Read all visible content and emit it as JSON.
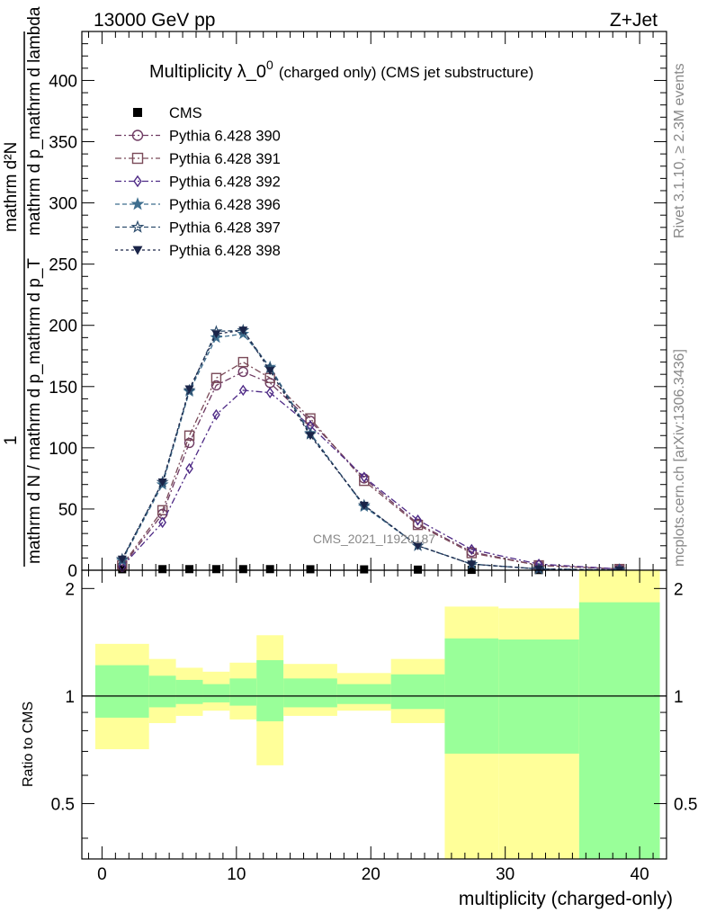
{
  "header": {
    "left": "13000 GeV pp",
    "right": "Z+Jet"
  },
  "side_text": {
    "rivet": "Rivet 3.1.10, ≥ 2.3M events",
    "mcplots": "mcplots.cern.ch [arXiv:1306.3436]"
  },
  "watermark": "CMS_2021_I1920187",
  "chart_data": [
    {
      "type": "line",
      "title": "Multiplicity λ_0^0 (charged only) (CMS jet substructure)",
      "title_main": "Multiplicity λ_0",
      "title_sup": "0",
      "title_rest": "(charged only) (CMS jet substructure)",
      "ylabel_parts": [
        "1",
        "mathrm d N / mathrm d p_mathrm d p_T",
        "mathrm d²N",
        "mathrm d p_mathrm d lambda"
      ],
      "xlabel": "",
      "xlim": [
        -1.5,
        42
      ],
      "ylim": [
        0,
        440
      ],
      "yticks": [
        0,
        50,
        100,
        150,
        200,
        250,
        300,
        350,
        400
      ],
      "x": [
        1.5,
        4.5,
        6.5,
        8.5,
        10.5,
        12.5,
        15.5,
        19.5,
        23.5,
        27.5,
        32.5,
        38.5
      ],
      "legend_position": "top-left",
      "series": [
        {
          "name": "CMS",
          "color": "#000000",
          "marker": "square",
          "values": [
            0.8,
            0.9,
            0.9,
            0.9,
            0.9,
            0.9,
            0.8,
            0.7,
            0.5,
            0.3,
            0.15,
            0.05
          ]
        },
        {
          "name": "Pythia 6.428 390",
          "color": "#6e3a62",
          "marker": "circle",
          "dash": "7,3,2,3",
          "values": [
            3,
            46,
            104,
            151,
            162,
            153,
            122,
            75,
            38,
            15,
            4,
            1
          ]
        },
        {
          "name": "Pythia 6.428 391",
          "color": "#7a4a58",
          "marker": "square-open",
          "dash": "7,3,2,3",
          "values": [
            4,
            49,
            110,
            157,
            170,
            157,
            124,
            73,
            37,
            14,
            4,
            1
          ]
        },
        {
          "name": "Pythia 6.428 392",
          "color": "#4e2a86",
          "marker": "diamond",
          "dash": "7,3,2,3",
          "values": [
            3,
            39,
            83,
            127,
            147,
            145,
            118,
            76,
            41,
            17,
            5,
            1
          ]
        },
        {
          "name": "Pythia 6.428 396",
          "color": "#3e6e8e",
          "marker": "star",
          "dash": "5,3",
          "values": [
            8,
            70,
            146,
            190,
            193,
            166,
            112,
            52,
            20,
            5,
            1,
            0.2
          ]
        },
        {
          "name": "Pythia 6.428 397",
          "color": "#2e4e6e",
          "marker": "star-open",
          "dash": "5,3",
          "values": [
            9,
            72,
            147,
            195,
            196,
            165,
            111,
            53,
            20,
            5,
            1,
            0.2
          ]
        },
        {
          "name": "Pythia 6.428 398",
          "color": "#1a2448",
          "marker": "triangle-down",
          "dash": "3,3",
          "values": [
            9,
            72,
            148,
            193,
            196,
            163,
            110,
            53,
            20,
            5,
            1,
            0.2
          ]
        }
      ]
    },
    {
      "type": "area",
      "title": "",
      "ylabel": "Ratio to CMS",
      "xlabel": "multiplicity (charged-only)",
      "xlim": [
        -1.5,
        42
      ],
      "ylim": [
        0.35,
        2.25
      ],
      "yticks": [
        0.5,
        1,
        2
      ],
      "xticks": [
        0,
        10,
        20,
        30,
        40
      ],
      "reference_line": 1,
      "bins": [
        {
          "lo": -0.5,
          "hi": 3.5,
          "green": [
            0.87,
            1.22
          ],
          "yellow": [
            0.71,
            1.4
          ]
        },
        {
          "lo": 3.5,
          "hi": 5.5,
          "green": [
            0.93,
            1.14
          ],
          "yellow": [
            0.84,
            1.27
          ]
        },
        {
          "lo": 5.5,
          "hi": 7.5,
          "green": [
            0.95,
            1.11
          ],
          "yellow": [
            0.88,
            1.2
          ]
        },
        {
          "lo": 7.5,
          "hi": 9.5,
          "green": [
            0.96,
            1.08
          ],
          "yellow": [
            0.91,
            1.17
          ]
        },
        {
          "lo": 9.5,
          "hi": 11.5,
          "green": [
            0.94,
            1.12
          ],
          "yellow": [
            0.86,
            1.24
          ]
        },
        {
          "lo": 11.5,
          "hi": 13.5,
          "green": [
            0.85,
            1.26
          ],
          "yellow": [
            0.64,
            1.48
          ]
        },
        {
          "lo": 13.5,
          "hi": 17.5,
          "green": [
            0.93,
            1.12
          ],
          "yellow": [
            0.88,
            1.23
          ]
        },
        {
          "lo": 17.5,
          "hi": 21.5,
          "green": [
            0.95,
            1.08
          ],
          "yellow": [
            0.91,
            1.16
          ]
        },
        {
          "lo": 21.5,
          "hi": 25.5,
          "green": [
            0.92,
            1.15
          ],
          "yellow": [
            0.84,
            1.27
          ]
        },
        {
          "lo": 25.5,
          "hi": 29.5,
          "green": [
            0.69,
            1.45
          ],
          "yellow": [
            0.35,
            1.78
          ]
        },
        {
          "lo": 29.5,
          "hi": 35.5,
          "green": [
            0.69,
            1.44
          ],
          "yellow": [
            0.35,
            1.76
          ]
        },
        {
          "lo": 35.5,
          "hi": 41.5,
          "green": [
            0.35,
            1.83
          ],
          "yellow": [
            0.35,
            2.25
          ]
        }
      ],
      "band_colors": {
        "green": "#99ff99",
        "yellow": "#ffff99"
      }
    }
  ]
}
